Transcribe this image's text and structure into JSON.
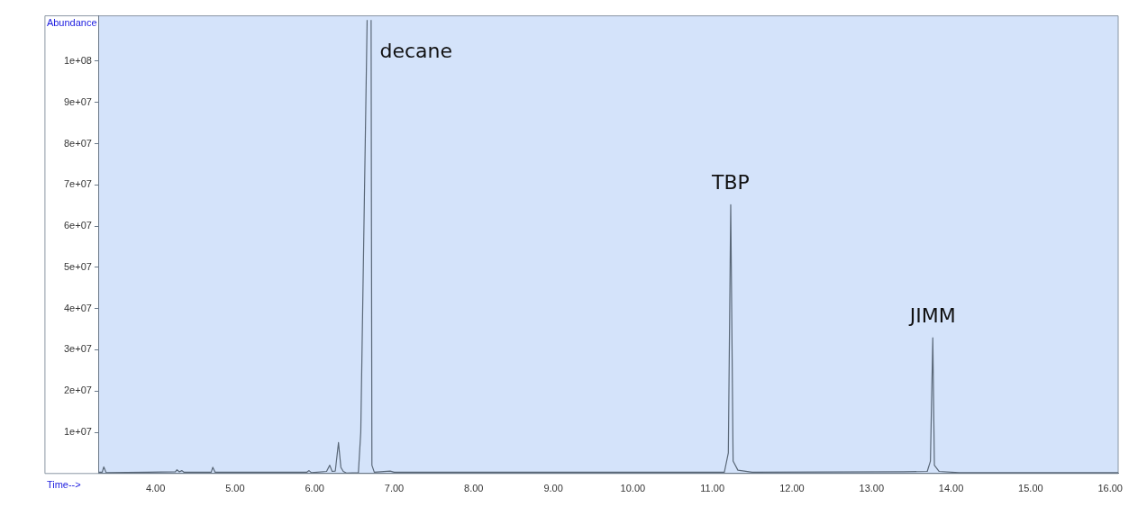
{
  "chart_data": {
    "type": "line",
    "xlabel": "Time-->",
    "ylabel": "Abundance",
    "xlim": [
      3.29,
      16.1
    ],
    "xticks": [
      {
        "value": 4,
        "label": "4.00"
      },
      {
        "value": 5,
        "label": "5.00"
      },
      {
        "value": 6,
        "label": "6.00"
      },
      {
        "value": 7,
        "label": "7.00"
      },
      {
        "value": 8,
        "label": "8.00"
      },
      {
        "value": 9,
        "label": "9.00"
      },
      {
        "value": 10,
        "label": "10.00"
      },
      {
        "value": 11,
        "label": "11.00"
      },
      {
        "value": 12,
        "label": "12.00"
      },
      {
        "value": 13,
        "label": "13.00"
      },
      {
        "value": 14,
        "label": "14.00"
      },
      {
        "value": 15,
        "label": "15.00"
      },
      {
        "value": 16,
        "label": "16.00"
      }
    ],
    "ylim": [
      0,
      111000000
    ],
    "yticks": [
      {
        "value": 10000000,
        "label": "1e+07"
      },
      {
        "value": 20000000,
        "label": "2e+07"
      },
      {
        "value": 30000000,
        "label": "3e+07"
      },
      {
        "value": 40000000,
        "label": "4e+07"
      },
      {
        "value": 50000000,
        "label": "5e+07"
      },
      {
        "value": 60000000,
        "label": "6e+07"
      },
      {
        "value": 70000000,
        "label": "7e+07"
      },
      {
        "value": 80000000,
        "label": "8e+07"
      },
      {
        "value": 90000000,
        "label": "9e+07"
      },
      {
        "value": 100000000,
        "label": "1e+08"
      }
    ],
    "x": [
      3.29,
      3.33,
      3.35,
      3.38,
      3.9,
      4.25,
      4.27,
      4.3,
      4.33,
      4.36,
      4.7,
      4.72,
      4.75,
      5.9,
      5.93,
      5.96,
      6.15,
      6.19,
      6.22,
      6.26,
      6.3,
      6.33,
      6.36,
      6.4,
      6.55,
      6.58,
      6.62,
      6.66,
      6.69,
      6.71,
      6.72,
      6.75,
      6.95,
      7.0,
      11.15,
      11.2,
      11.23,
      11.26,
      11.32,
      11.5,
      13.4,
      13.7,
      13.74,
      13.77,
      13.79,
      13.85,
      14.1,
      16.1
    ],
    "values": [
      300000,
      300000,
      1600000,
      200000,
      300000,
      400000,
      900000,
      400000,
      700000,
      300000,
      300000,
      1500000,
      300000,
      300000,
      700000,
      200000,
      500000,
      2000000,
      500000,
      600000,
      7500000,
      1500000,
      500000,
      100000,
      200000,
      10000000,
      60000000,
      110000000,
      null,
      110000000,
      2000000,
      300000,
      600000,
      300000,
      300000,
      5000000,
      65200000,
      3000000,
      800000,
      300000,
      400000,
      500000,
      3000000,
      32900000,
      2000000,
      500000,
      200000,
      200000
    ],
    "color": "#5a6878",
    "line_style": "solid",
    "marker": "none",
    "grid": false,
    "legend": false,
    "annotations": [
      "decane",
      {
        "text": "TBP",
        "x": 11.23,
        "y": 65200000
      },
      {
        "text": "JIMM",
        "x": 13.77,
        "y": 32900000
      }
    ]
  }
}
